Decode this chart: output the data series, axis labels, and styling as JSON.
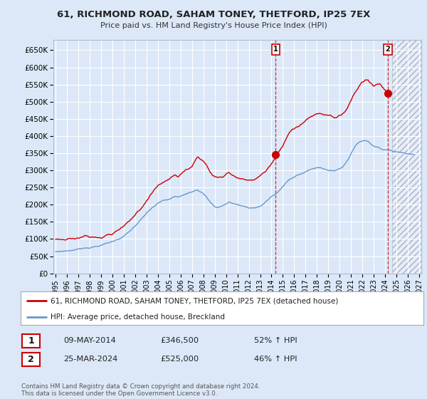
{
  "title": "61, RICHMOND ROAD, SAHAM TONEY, THETFORD, IP25 7EX",
  "subtitle": "Price paid vs. HM Land Registry's House Price Index (HPI)",
  "ylim": [
    0,
    680000
  ],
  "yticks": [
    0,
    50000,
    100000,
    150000,
    200000,
    250000,
    300000,
    350000,
    400000,
    450000,
    500000,
    550000,
    600000,
    650000
  ],
  "ytick_labels": [
    "£0",
    "£50K",
    "£100K",
    "£150K",
    "£200K",
    "£250K",
    "£300K",
    "£350K",
    "£400K",
    "£450K",
    "£500K",
    "£550K",
    "£600K",
    "£650K"
  ],
  "background_color": "#dce8f8",
  "plot_bg_color": "#dce8f8",
  "hatch_bg_color": "#e8eef8",
  "red_line_color": "#cc0000",
  "blue_line_color": "#6699cc",
  "grid_color": "#ffffff",
  "legend_label_red": "61, RICHMOND ROAD, SAHAM TONEY, THETFORD, IP25 7EX (detached house)",
  "legend_label_blue": "HPI: Average price, detached house, Breckland",
  "point1_label": "1",
  "point1_date": "09-MAY-2014",
  "point1_value": "£346,500",
  "point1_hpi": "52% ↑ HPI",
  "point2_label": "2",
  "point2_date": "25-MAR-2024",
  "point2_value": "£525,000",
  "point2_hpi": "46% ↑ HPI",
  "footer": "Contains HM Land Registry data © Crown copyright and database right 2024.\nThis data is licensed under the Open Government Licence v3.0.",
  "xmin_year": 1995,
  "xmax_year": 2027,
  "xtick_years": [
    1995,
    1996,
    1997,
    1998,
    1999,
    2000,
    2001,
    2002,
    2003,
    2004,
    2005,
    2006,
    2007,
    2008,
    2009,
    2010,
    2011,
    2012,
    2013,
    2014,
    2015,
    2016,
    2017,
    2018,
    2019,
    2020,
    2021,
    2022,
    2023,
    2024,
    2025,
    2026,
    2027
  ],
  "point1_x": 2014.37,
  "point1_y": 346500,
  "point2_x": 2024.23,
  "point2_y": 525000,
  "hatch_start": 2024.6
}
